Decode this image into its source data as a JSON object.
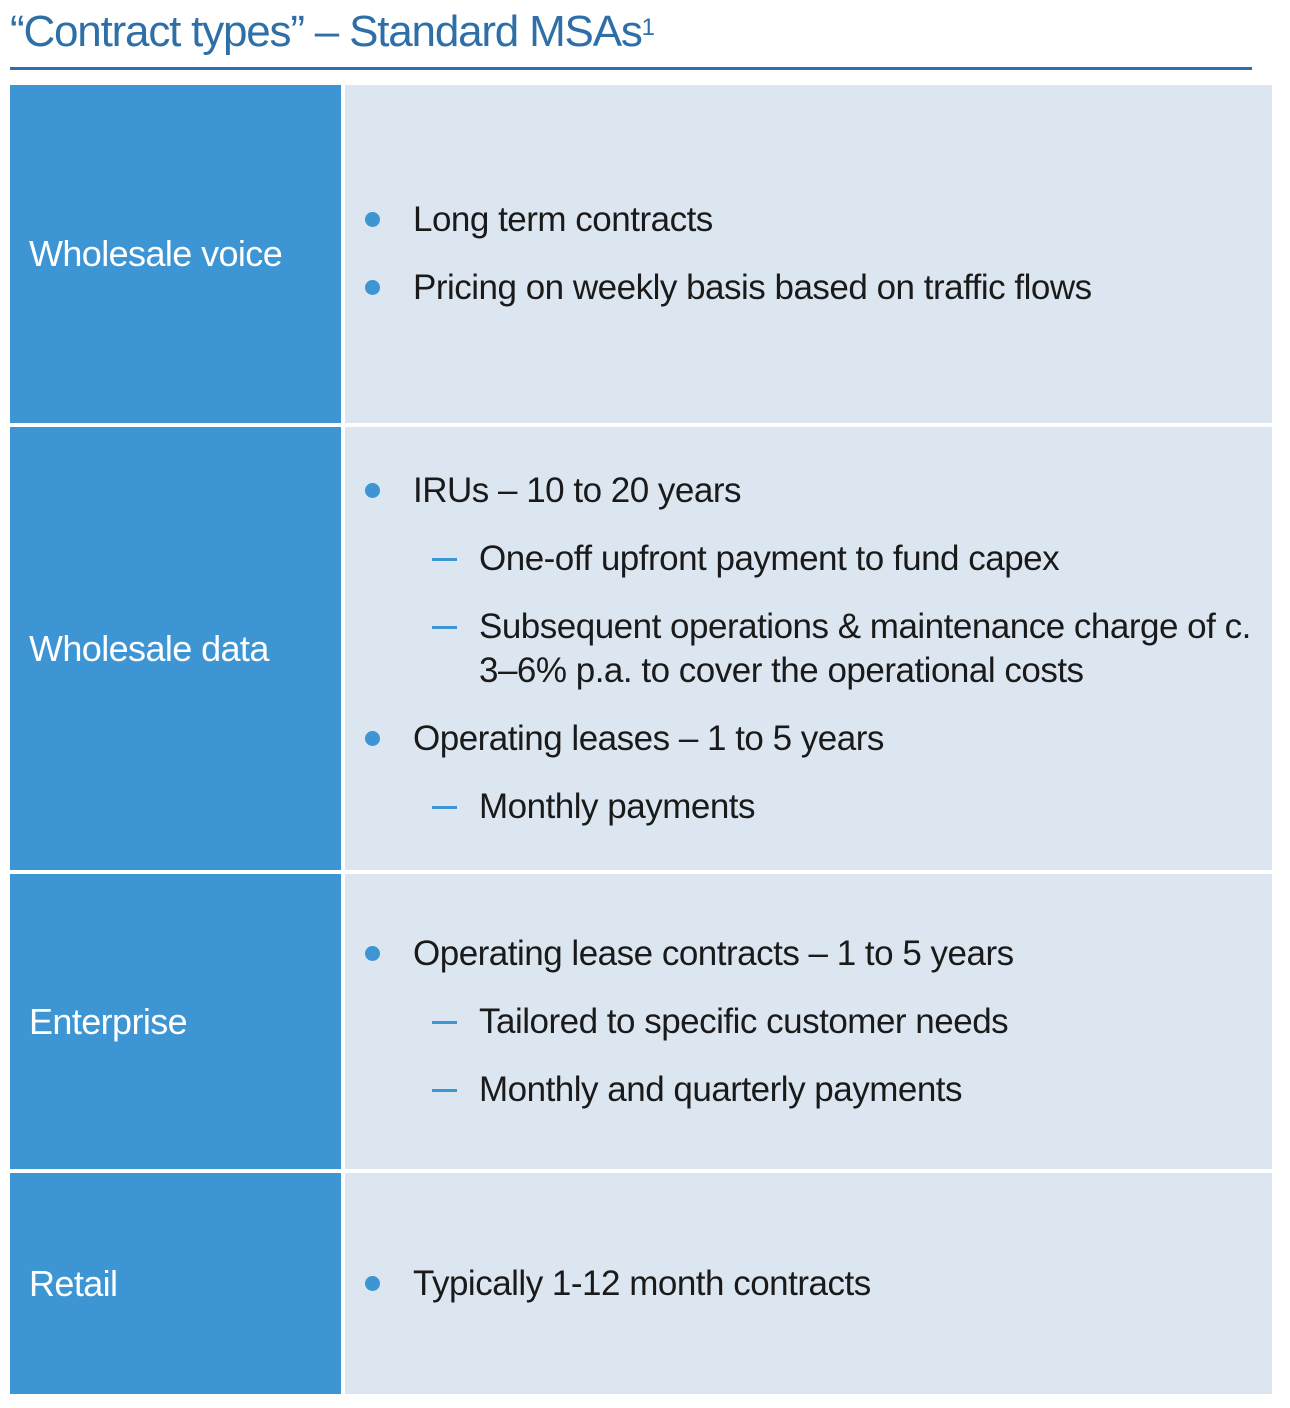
{
  "title": {
    "text": "“Contract types” – Standard MSAs",
    "superscript": "1"
  },
  "colors": {
    "title": "#2f6fa8",
    "label_background": "#3d95d4",
    "content_background": "#dce6f0",
    "bullet": "#3d95d4"
  },
  "rows": [
    {
      "label": "Wholesale voice",
      "items": [
        {
          "level": 1,
          "text": "Long term contracts"
        },
        {
          "level": 1,
          "text": "Pricing on weekly basis based on traffic flows"
        }
      ]
    },
    {
      "label": "Wholesale data",
      "items": [
        {
          "level": 1,
          "text": "IRUs – 10 to 20 years"
        },
        {
          "level": 2,
          "text": "One-off upfront payment to fund capex"
        },
        {
          "level": 2,
          "text": "Subsequent operations & maintenance charge of c. 3–6% p.a. to cover the operational costs"
        },
        {
          "level": 1,
          "text": "Operating leases – 1 to 5 years"
        },
        {
          "level": 2,
          "text": "Monthly payments"
        }
      ]
    },
    {
      "label": "Enterprise",
      "items": [
        {
          "level": 1,
          "text": "Operating lease contracts – 1 to 5 years"
        },
        {
          "level": 2,
          "text": "Tailored to specific customer needs"
        },
        {
          "level": 2,
          "text": "Monthly and quarterly payments"
        }
      ]
    },
    {
      "label": "Retail",
      "items": [
        {
          "level": 1,
          "text": "Typically 1-12 month contracts"
        }
      ]
    }
  ]
}
